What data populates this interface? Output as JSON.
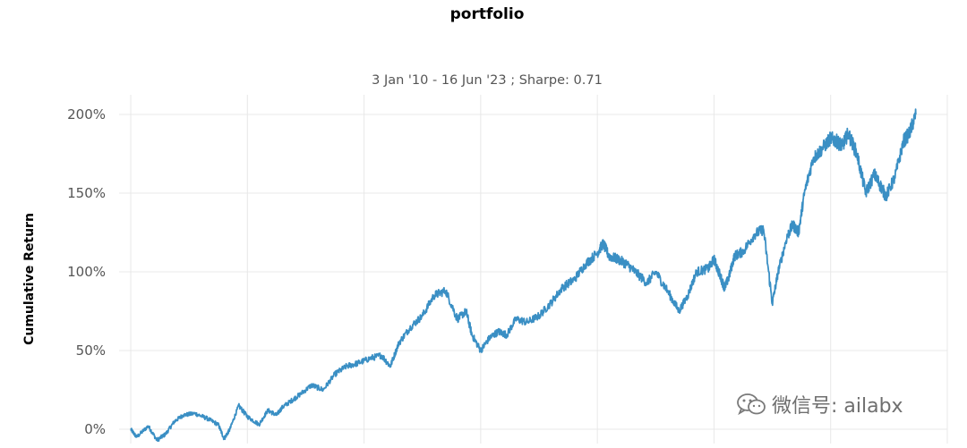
{
  "chart_data": {
    "type": "line",
    "title": "portfolio",
    "subtitle": "3 Jan '10 - 16 Jun '23 ;  Sharpe: 0.71",
    "ylabel": "Cumulative Return",
    "xlabel": "",
    "y_ticks": [
      "0%",
      "50%",
      "100%",
      "150%",
      "200%"
    ],
    "y_tick_values": [
      0,
      50,
      100,
      150,
      200
    ],
    "ylim": [
      -8,
      205
    ],
    "xlim": [
      2009.8,
      2024.0
    ],
    "grid": true,
    "color": "#3a8fc4",
    "series": [
      {
        "x": [
          2010.0,
          2010.1,
          2010.3,
          2010.45,
          2010.6,
          2010.75,
          2010.9,
          2011.1,
          2011.3,
          2011.5,
          2011.6,
          2011.7,
          2011.85,
          2012.0,
          2012.2,
          2012.35,
          2012.5,
          2012.6,
          2012.75,
          2012.9,
          2013.1,
          2013.3,
          2013.5,
          2013.7,
          2013.9,
          2014.1,
          2014.3,
          2014.45,
          2014.6,
          2014.8,
          2015.0,
          2015.2,
          2015.4,
          2015.6,
          2015.75,
          2015.85,
          2016.0,
          2016.15,
          2016.3,
          2016.45,
          2016.6,
          2016.8,
          2017.0,
          2017.2,
          2017.4,
          2017.6,
          2017.8,
          2018.0,
          2018.1,
          2018.2,
          2018.35,
          2018.5,
          2018.65,
          2018.85,
          2019.0,
          2019.2,
          2019.4,
          2019.55,
          2019.7,
          2019.9,
          2020.0,
          2020.1,
          2020.18,
          2020.25,
          2020.35,
          2020.5,
          2020.7,
          2020.85,
          2021.0,
          2021.1,
          2021.25,
          2021.35,
          2021.45,
          2021.55,
          2021.7,
          2021.85,
          2022.0,
          2022.1,
          2022.2,
          2022.3,
          2022.45,
          2022.6,
          2022.75,
          2022.85,
          2022.95,
          2023.1,
          2023.25,
          2023.35,
          2023.46
        ],
        "y": [
          0,
          -5,
          2,
          -7,
          -3,
          5,
          9,
          10,
          7,
          3,
          -6,
          0,
          15,
          8,
          3,
          12,
          9,
          14,
          18,
          22,
          28,
          25,
          35,
          40,
          42,
          45,
          47,
          40,
          55,
          65,
          72,
          85,
          88,
          70,
          75,
          60,
          50,
          58,
          62,
          60,
          70,
          68,
          72,
          80,
          90,
          95,
          105,
          112,
          118,
          110,
          108,
          105,
          100,
          93,
          100,
          88,
          75,
          85,
          100,
          102,
          108,
          98,
          90,
          96,
          110,
          113,
          124,
          127,
          80,
          100,
          122,
          130,
          125,
          150,
          172,
          178,
          185,
          183,
          180,
          188,
          175,
          150,
          162,
          155,
          148,
          160,
          183,
          188,
          200
        ]
      }
    ]
  },
  "watermark": {
    "text": "微信号: ailabx",
    "icon": "wechat-icon"
  }
}
